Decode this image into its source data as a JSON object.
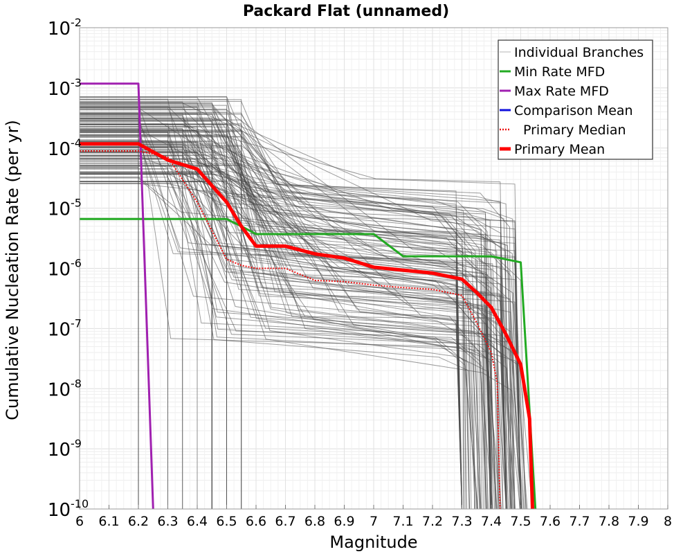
{
  "chart_data": {
    "type": "line",
    "title": "Packard Flat (unnamed)",
    "xlabel": "Magnitude",
    "ylabel": "Cumulative Nucleation Rate (per yr)",
    "xlim": [
      6,
      8
    ],
    "ylim_log10": [
      -10,
      -2
    ],
    "yscale": "log",
    "grid": true,
    "legend_position": "top-right",
    "x_ticks": [
      "6",
      "6.1",
      "6.2",
      "6.3",
      "6.4",
      "6.5",
      "6.6",
      "6.7",
      "6.8",
      "6.9",
      "7",
      "7.1",
      "7.2",
      "7.3",
      "7.4",
      "7.5",
      "7.6",
      "7.7",
      "7.8",
      "7.9",
      "8"
    ],
    "y_ticks": [
      {
        "base": "10",
        "exp": "-10",
        "log10": -10
      },
      {
        "base": "10",
        "exp": "-9",
        "log10": -9
      },
      {
        "base": "10",
        "exp": "-8",
        "log10": -8
      },
      {
        "base": "10",
        "exp": "-7",
        "log10": -7
      },
      {
        "base": "10",
        "exp": "-6",
        "log10": -6
      },
      {
        "base": "10",
        "exp": "-5",
        "log10": -5
      },
      {
        "base": "10",
        "exp": "-4",
        "log10": -4
      },
      {
        "base": "10",
        "exp": "-3",
        "log10": -3
      },
      {
        "base": "10",
        "exp": "-2",
        "log10": -2
      }
    ],
    "legend": [
      {
        "label": "Individual Branches",
        "color": "#b4b4b4",
        "style": "solid-thin"
      },
      {
        "label": "Min Rate MFD",
        "color": "#22aa22",
        "style": "solid"
      },
      {
        "label": "Max Rate MFD",
        "color": "#a020b0",
        "style": "solid"
      },
      {
        "label": "Comparison Mean",
        "color": "#1010dd",
        "style": "solid"
      },
      {
        "label": "Primary Median",
        "color": "#ee1111",
        "style": "dotted"
      },
      {
        "label": "Primary Mean",
        "color": "#ff0000",
        "style": "solid-thick"
      }
    ],
    "branches_note": {
      "count": 160,
      "plateau_log10_range": [
        -4.6,
        -3.1
      ],
      "max_magnitudes": [
        6.2,
        6.3,
        6.35,
        6.4,
        6.45,
        6.5,
        6.55
      ],
      "far_dropoff_magnitudes": [
        7.3,
        7.4,
        7.45,
        7.5
      ]
    },
    "series": [
      {
        "name": "Min Rate MFD",
        "color": "#22aa22",
        "x": [
          6.0,
          6.5,
          6.55,
          6.6,
          7.0,
          7.1,
          7.4,
          7.5,
          7.55
        ],
        "log10_y": [
          -5.18,
          -5.18,
          -5.3,
          -5.43,
          -5.43,
          -5.8,
          -5.8,
          -5.9,
          -10
        ]
      },
      {
        "name": "Max Rate MFD",
        "color": "#a020b0",
        "x": [
          6.0,
          6.2,
          6.25
        ],
        "log10_y": [
          -2.93,
          -2.93,
          -10
        ]
      },
      {
        "name": "Primary Median",
        "color": "#ee1111",
        "dashed": true,
        "x": [
          6.0,
          6.2,
          6.3,
          6.4,
          6.5,
          6.55,
          6.6,
          6.7,
          6.8,
          6.9,
          7.0,
          7.1,
          7.2,
          7.3,
          7.35,
          7.4,
          7.42,
          7.43
        ],
        "log10_y": [
          -4.05,
          -4.05,
          -4.15,
          -4.9,
          -5.85,
          -5.95,
          -6.0,
          -6.0,
          -6.2,
          -6.22,
          -6.28,
          -6.32,
          -6.35,
          -6.45,
          -6.9,
          -7.4,
          -7.9,
          -10
        ]
      },
      {
        "name": "Primary Mean",
        "color": "#ff0000",
        "x": [
          6.0,
          6.2,
          6.3,
          6.4,
          6.5,
          6.55,
          6.6,
          6.7,
          6.8,
          6.9,
          7.0,
          7.1,
          7.2,
          7.3,
          7.35,
          7.4,
          7.45,
          7.5,
          7.53,
          7.54
        ],
        "log10_y": [
          -3.93,
          -3.93,
          -4.2,
          -4.35,
          -4.9,
          -5.3,
          -5.63,
          -5.63,
          -5.76,
          -5.83,
          -5.98,
          -6.03,
          -6.08,
          -6.18,
          -6.4,
          -6.65,
          -7.1,
          -7.6,
          -8.5,
          -10
        ]
      }
    ]
  }
}
